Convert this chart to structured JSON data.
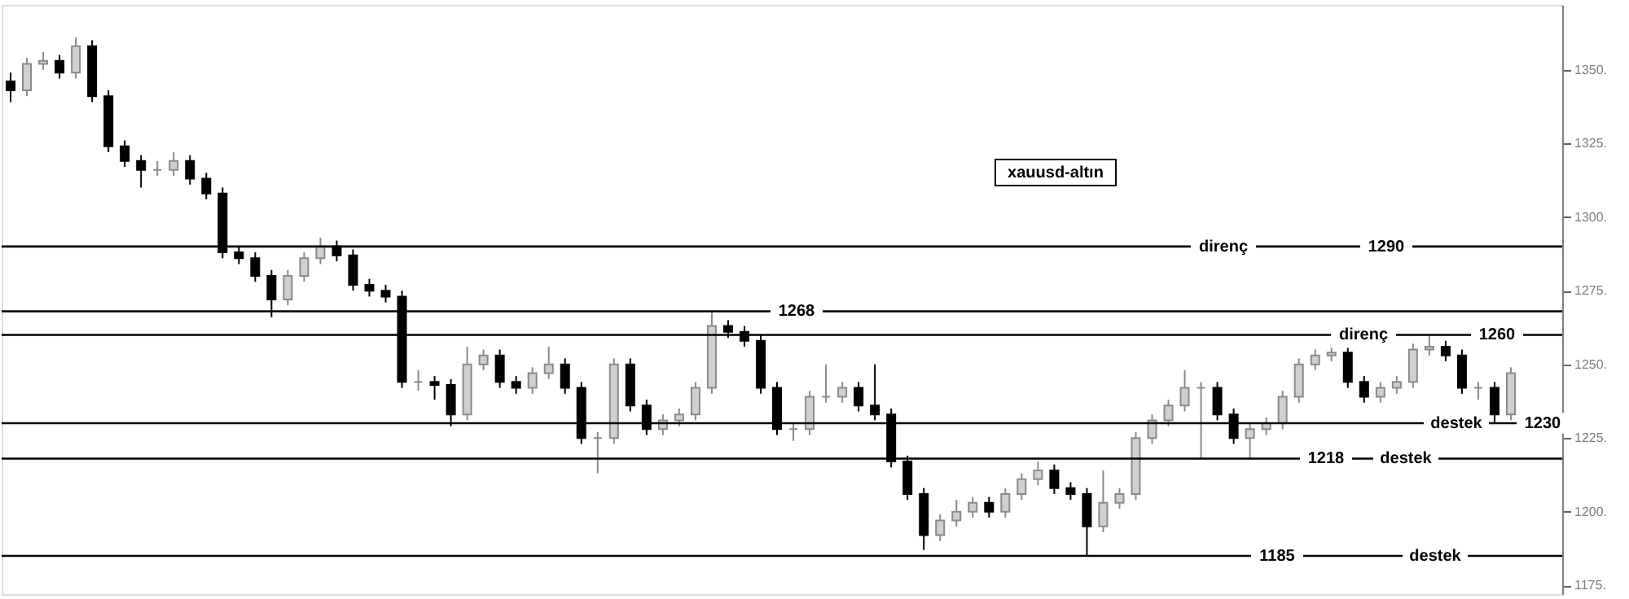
{
  "chart_data": {
    "type": "candlestick",
    "title": "xauusd-altın",
    "categories": [
      null,
      null,
      null,
      null,
      null,
      null,
      null,
      null,
      null,
      null,
      null,
      null,
      null,
      null,
      null,
      null,
      null,
      null,
      null,
      null,
      null,
      null,
      null,
      null,
      null,
      null,
      null,
      null,
      null,
      null,
      null,
      null,
      null,
      null,
      null,
      null,
      null,
      null,
      null,
      null,
      null,
      null,
      null,
      null,
      null,
      null,
      null,
      null,
      null,
      null,
      null,
      null,
      null,
      null,
      null,
      null,
      null,
      null,
      null,
      null,
      null,
      null,
      null,
      null,
      null,
      null,
      null,
      null,
      null,
      null,
      null,
      null,
      null,
      null,
      null,
      null,
      null,
      null,
      null,
      null,
      null,
      null,
      null,
      null,
      null,
      null,
      null,
      null,
      null,
      null,
      null,
      null,
      null
    ],
    "ohlc": [
      [
        1346,
        1349,
        1339,
        1343
      ],
      [
        1343,
        1354,
        1341,
        1352
      ],
      [
        1352,
        1356,
        1350,
        1353
      ],
      [
        1353,
        1355,
        1347,
        1349
      ],
      [
        1349,
        1361,
        1347,
        1358
      ],
      [
        1358,
        1360,
        1339,
        1341
      ],
      [
        1341,
        1343,
        1322,
        1324
      ],
      [
        1324,
        1326,
        1317,
        1319
      ],
      [
        1319,
        1321,
        1310,
        1316
      ],
      [
        1316,
        1319,
        1314,
        1316
      ],
      [
        1316,
        1322,
        1314,
        1319
      ],
      [
        1319,
        1321,
        1311,
        1313
      ],
      [
        1313,
        1315,
        1306,
        1308
      ],
      [
        1308,
        1310,
        1286,
        1288
      ],
      [
        1288,
        1290,
        1284,
        1286
      ],
      [
        1286,
        1288,
        1278,
        1280
      ],
      [
        1280,
        1282,
        1266,
        1272
      ],
      [
        1272,
        1282,
        1270,
        1280
      ],
      [
        1280,
        1288,
        1278,
        1286
      ],
      [
        1286,
        1293,
        1284,
        1290
      ],
      [
        1290,
        1292,
        1285,
        1287
      ],
      [
        1287,
        1289,
        1275,
        1277
      ],
      [
        1277,
        1279,
        1273,
        1275
      ],
      [
        1275,
        1277,
        1271,
        1273
      ],
      [
        1273,
        1275,
        1242,
        1244
      ],
      [
        1244,
        1248,
        1241,
        1244
      ],
      [
        1244,
        1246,
        1238,
        1243
      ],
      [
        1243,
        1245,
        1229,
        1233
      ],
      [
        1233,
        1256,
        1231,
        1250
      ],
      [
        1250,
        1255,
        1248,
        1253
      ],
      [
        1253,
        1255,
        1242,
        1244
      ],
      [
        1244,
        1246,
        1240,
        1242
      ],
      [
        1242,
        1249,
        1240,
        1247
      ],
      [
        1247,
        1256,
        1245,
        1250
      ],
      [
        1250,
        1252,
        1240,
        1242
      ],
      [
        1242,
        1244,
        1223,
        1225
      ],
      [
        1225,
        1227,
        1213,
        1225
      ],
      [
        1225,
        1252,
        1223,
        1250
      ],
      [
        1250,
        1252,
        1234,
        1236
      ],
      [
        1236,
        1238,
        1226,
        1228
      ],
      [
        1228,
        1233,
        1226,
        1231
      ],
      [
        1231,
        1235,
        1229,
        1233
      ],
      [
        1233,
        1244,
        1231,
        1242
      ],
      [
        1242,
        1268,
        1240,
        1263
      ],
      [
        1263,
        1265,
        1259,
        1261
      ],
      [
        1261,
        1263,
        1256,
        1258
      ],
      [
        1258,
        1260,
        1240,
        1242
      ],
      [
        1242,
        1244,
        1226,
        1228
      ],
      [
        1228,
        1230,
        1224,
        1228
      ],
      [
        1228,
        1241,
        1226,
        1239
      ],
      [
        1239,
        1250,
        1237,
        1239
      ],
      [
        1239,
        1244,
        1237,
        1242
      ],
      [
        1242,
        1244,
        1234,
        1236
      ],
      [
        1236,
        1250,
        1231,
        1233
      ],
      [
        1233,
        1235,
        1215,
        1217
      ],
      [
        1217,
        1219,
        1204,
        1206
      ],
      [
        1206,
        1208,
        1187,
        1192
      ],
      [
        1192,
        1199,
        1190,
        1197
      ],
      [
        1197,
        1204,
        1195,
        1200
      ],
      [
        1200,
        1205,
        1198,
        1203
      ],
      [
        1203,
        1205,
        1198,
        1200
      ],
      [
        1200,
        1208,
        1198,
        1206
      ],
      [
        1206,
        1213,
        1204,
        1211
      ],
      [
        1211,
        1217,
        1209,
        1214
      ],
      [
        1214,
        1216,
        1206,
        1208
      ],
      [
        1208,
        1210,
        1204,
        1206
      ],
      [
        1206,
        1208,
        1185,
        1195
      ],
      [
        1195,
        1214,
        1193,
        1203
      ],
      [
        1203,
        1208,
        1201,
        1206
      ],
      [
        1206,
        1227,
        1204,
        1225
      ],
      [
        1225,
        1233,
        1223,
        1231
      ],
      [
        1231,
        1238,
        1229,
        1236
      ],
      [
        1236,
        1248,
        1234,
        1242
      ],
      [
        1242,
        1244,
        1218,
        1242
      ],
      [
        1242,
        1244,
        1231,
        1233
      ],
      [
        1233,
        1235,
        1223,
        1225
      ],
      [
        1225,
        1230,
        1218,
        1228
      ],
      [
        1228,
        1232,
        1226,
        1230
      ],
      [
        1230,
        1241,
        1228,
        1239
      ],
      [
        1239,
        1252,
        1237,
        1250
      ],
      [
        1250,
        1255,
        1248,
        1253
      ],
      [
        1253,
        1257,
        1251,
        1254
      ],
      [
        1254,
        1256,
        1242,
        1244
      ],
      [
        1244,
        1246,
        1237,
        1239
      ],
      [
        1239,
        1244,
        1237,
        1242
      ],
      [
        1242,
        1246,
        1240,
        1244
      ],
      [
        1244,
        1257,
        1242,
        1255
      ],
      [
        1255,
        1260,
        1253,
        1256
      ],
      [
        1256,
        1258,
        1251,
        1253
      ],
      [
        1253,
        1255,
        1240,
        1242
      ],
      [
        1242,
        1244,
        1238,
        1242
      ],
      [
        1242,
        1244,
        1230,
        1233
      ],
      [
        1233,
        1249,
        1231,
        1247
      ]
    ],
    "ylim": [
      1172,
      1372
    ],
    "yticks": [
      {
        "value": 1175,
        "label": "1175."
      },
      {
        "value": 1200,
        "label": "1200."
      },
      {
        "value": 1225,
        "label": "1225."
      },
      {
        "value": 1250,
        "label": "1250."
      },
      {
        "value": 1275,
        "label": "1275."
      },
      {
        "value": 1300,
        "label": "1300."
      },
      {
        "value": 1325,
        "label": "1325."
      },
      {
        "value": 1350,
        "label": "1350."
      }
    ],
    "tick_labels": "y",
    "ref_lines": [
      {
        "axis": "y",
        "value": 1290,
        "label": "direnç",
        "color": "#000000"
      },
      {
        "axis": "y",
        "value": 1268,
        "color": "#000000"
      },
      {
        "axis": "y",
        "value": 1260,
        "label": "direnç",
        "color": "#000000"
      },
      {
        "axis": "y",
        "value": 1230,
        "label": "destek",
        "color": "#000000"
      },
      {
        "axis": "y",
        "value": 1218,
        "label": "destek",
        "color": "#000000"
      },
      {
        "axis": "y",
        "value": 1185,
        "label": "destek",
        "color": "#000000"
      }
    ],
    "annotations": [
      {
        "text": "1290",
        "y": 1290
      },
      {
        "text": "1268",
        "y": 1268
      },
      {
        "text": "1260",
        "y": 1260
      },
      {
        "text": "1230",
        "y": 1230
      },
      {
        "text": "1218",
        "y": 1218
      },
      {
        "text": "1185",
        "y": 1185
      }
    ]
  }
}
